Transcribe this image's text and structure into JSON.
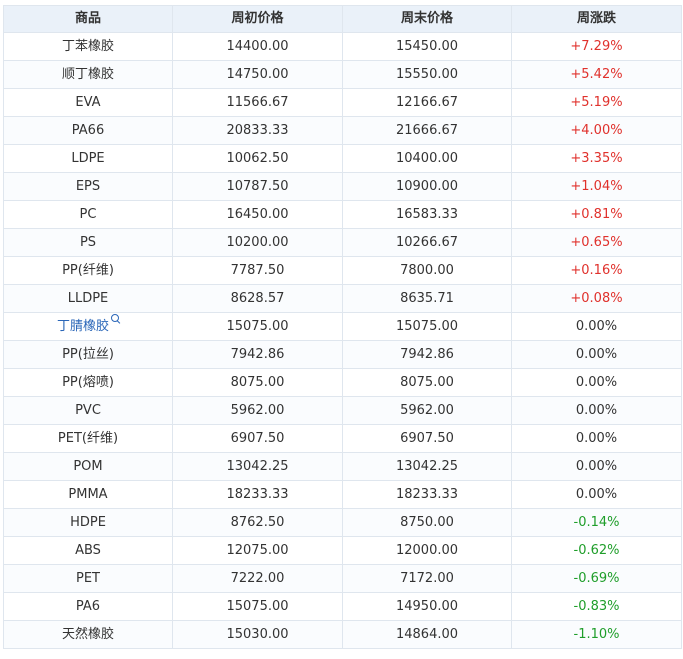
{
  "table": {
    "headers": [
      "商品",
      "周初价格",
      "周末价格",
      "周涨跌"
    ],
    "rows": [
      {
        "name": "丁苯橡胶",
        "start": "14400.00",
        "end": "15450.00",
        "change": "+7.29%",
        "trend": "up"
      },
      {
        "name": "顺丁橡胶",
        "start": "14750.00",
        "end": "15550.00",
        "change": "+5.42%",
        "trend": "up"
      },
      {
        "name": "EVA",
        "start": "11566.67",
        "end": "12166.67",
        "change": "+5.19%",
        "trend": "up"
      },
      {
        "name": "PA66",
        "start": "20833.33",
        "end": "21666.67",
        "change": "+4.00%",
        "trend": "up"
      },
      {
        "name": "LDPE",
        "start": "10062.50",
        "end": "10400.00",
        "change": "+3.35%",
        "trend": "up"
      },
      {
        "name": "EPS",
        "start": "10787.50",
        "end": "10900.00",
        "change": "+1.04%",
        "trend": "up"
      },
      {
        "name": "PC",
        "start": "16450.00",
        "end": "16583.33",
        "change": "+0.81%",
        "trend": "up"
      },
      {
        "name": "PS",
        "start": "10200.00",
        "end": "10266.67",
        "change": "+0.65%",
        "trend": "up"
      },
      {
        "name": "PP(纤维)",
        "start": "7787.50",
        "end": "7800.00",
        "change": "+0.16%",
        "trend": "up"
      },
      {
        "name": "LLDPE",
        "start": "8628.57",
        "end": "8635.71",
        "change": "+0.08%",
        "trend": "up"
      },
      {
        "name": "丁腈橡胶",
        "start": "15075.00",
        "end": "15075.00",
        "change": "0.00%",
        "trend": "flat",
        "link": true
      },
      {
        "name": "PP(拉丝)",
        "start": "7942.86",
        "end": "7942.86",
        "change": "0.00%",
        "trend": "flat"
      },
      {
        "name": "PP(熔喷)",
        "start": "8075.00",
        "end": "8075.00",
        "change": "0.00%",
        "trend": "flat"
      },
      {
        "name": "PVC",
        "start": "5962.00",
        "end": "5962.00",
        "change": "0.00%",
        "trend": "flat"
      },
      {
        "name": "PET(纤维)",
        "start": "6907.50",
        "end": "6907.50",
        "change": "0.00%",
        "trend": "flat"
      },
      {
        "name": "POM",
        "start": "13042.25",
        "end": "13042.25",
        "change": "0.00%",
        "trend": "flat"
      },
      {
        "name": "PMMA",
        "start": "18233.33",
        "end": "18233.33",
        "change": "0.00%",
        "trend": "flat"
      },
      {
        "name": "HDPE",
        "start": "8762.50",
        "end": "8750.00",
        "change": "-0.14%",
        "trend": "down"
      },
      {
        "name": "ABS",
        "start": "12075.00",
        "end": "12000.00",
        "change": "-0.62%",
        "trend": "down"
      },
      {
        "name": "PET",
        "start": "7222.00",
        "end": "7172.00",
        "change": "-0.69%",
        "trend": "down"
      },
      {
        "name": "PA6",
        "start": "15075.00",
        "end": "14950.00",
        "change": "-0.83%",
        "trend": "down"
      },
      {
        "name": "天然橡胶",
        "start": "15030.00",
        "end": "14864.00",
        "change": "-1.10%",
        "trend": "down"
      }
    ]
  },
  "colors": {
    "up": "#e0312c",
    "down": "#1f9e2a",
    "link": "#2a66b8",
    "header_bg": "#eaf1f9",
    "border": "#dfe6ee"
  }
}
